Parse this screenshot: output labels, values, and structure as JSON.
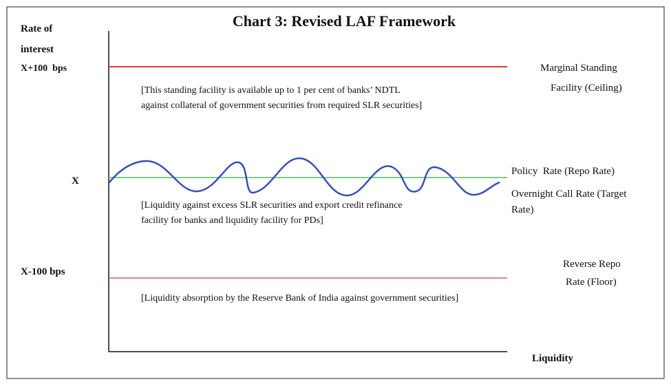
{
  "title": "Chart 3: Revised LAF Framework",
  "y_axis_label": [
    "Rate of",
    "interest"
  ],
  "x_axis_label": "Liquidity",
  "levels": {
    "upper": "X+100  bps",
    "middle": "X",
    "lower": "X-100 bps"
  },
  "corridor": {
    "ceiling": {
      "label": [
        "Marginal Standing",
        "Facility (Ceiling)"
      ],
      "note": [
        "[This standing facility is available up to 1 per cent of banks’ NDTL",
        "against collateral of government securities from required SLR securities]"
      ]
    },
    "policy": {
      "label": [
        "Policy  Rate (Repo Rate)",
        "Overnight Call Rate (Target",
        "Rate)"
      ],
      "note": [
        "[Liquidity against excess SLR securities and export credit refinance",
        "facility for banks and liquidity facility for PDs]"
      ]
    },
    "floor": {
      "label": [
        "Reverse Repo",
        "Rate (Floor)"
      ],
      "note": [
        "[Liquidity absorption by the Reserve Bank of India against government securities]"
      ]
    }
  }
}
